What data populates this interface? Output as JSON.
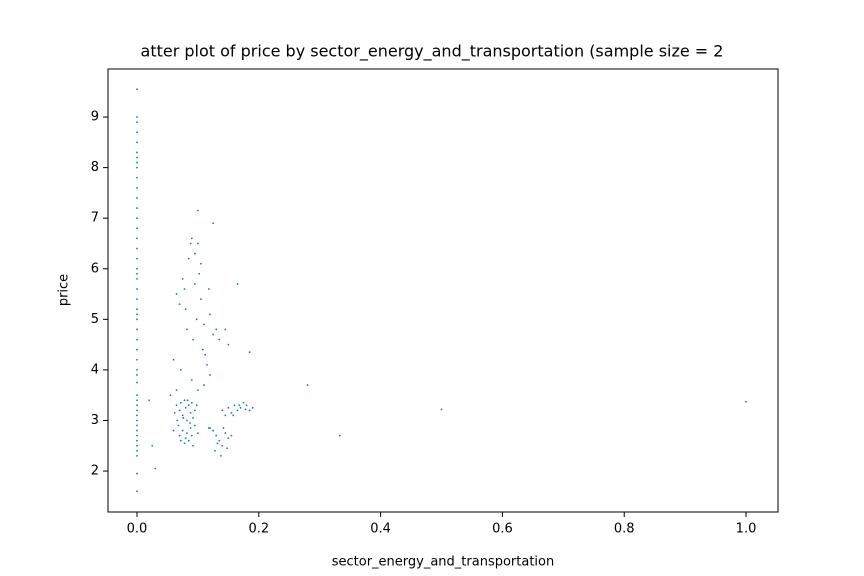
{
  "chart_data": {
    "type": "scatter",
    "title": "atter plot of price by sector_energy_and_transportation (sample size = 2",
    "xlabel": "sector_energy_and_transportation",
    "ylabel": "price",
    "color": "#1f77b4",
    "xlim": [
      -0.0476,
      1.0525
    ],
    "ylim": [
      1.19,
      9.95
    ],
    "xticks": [
      {
        "value": 0,
        "label": "0.0"
      },
      0.2,
      0.4,
      0.6,
      0.8,
      {
        "value": 1,
        "label": "1.0"
      }
    ],
    "yticks": [
      2,
      3,
      4,
      5,
      6,
      7,
      8,
      9
    ],
    "x": [
      0,
      0,
      0,
      0,
      0,
      0,
      0,
      0,
      0,
      0,
      0,
      0,
      0,
      0,
      0,
      0,
      0,
      0,
      0,
      0,
      0,
      0,
      0,
      0,
      0,
      0,
      0,
      0,
      0,
      0,
      0,
      0,
      0,
      0,
      0,
      0,
      0,
      0,
      0,
      0,
      0,
      0,
      0,
      0,
      0,
      0,
      0,
      0,
      0.065,
      0.07,
      0.072,
      0.075,
      0.078,
      0.08,
      0.082,
      0.085,
      0.088,
      0.09,
      0.092,
      0.095,
      0.068,
      0.07,
      0.072,
      0.075,
      0.078,
      0.08,
      0.082,
      0.085,
      0.088,
      0.09,
      0.092,
      0.095,
      0.1,
      0.098,
      0.066,
      0.06,
      0.062,
      0.083,
      0.087,
      0.076,
      0.12,
      0.125,
      0.13,
      0.135,
      0.14,
      0.145,
      0.15,
      0.128,
      0.138,
      0.142,
      0.132,
      0.148,
      0.118,
      0.155,
      0.14,
      0.145,
      0.15,
      0.155,
      0.16,
      0.165,
      0.17,
      0.175,
      0.18,
      0.185,
      0.19,
      0.158,
      0.168,
      0.178,
      0.06,
      0.065,
      0.07,
      0.075,
      0.078,
      0.08,
      0.082,
      0.085,
      0.088,
      0.09,
      0.092,
      0.095,
      0.1,
      0.102,
      0.105,
      0.11,
      0.112,
      0.115,
      0.118,
      0.12,
      0.125,
      0.13,
      0.135,
      0.145,
      0.15,
      0.072,
      0.09,
      0.1,
      0.11,
      0.12,
      0.055,
      0.065,
      0.108,
      0.098,
      0.105,
      0.095,
      0.28,
      0.5,
      0.333,
      1.0,
      0.03,
      0.025,
      0.02,
      0.165,
      0.185,
      0.1,
      0.125
    ],
    "y": [
      1.6,
      1.95,
      2.3,
      2.4,
      2.5,
      2.6,
      2.7,
      2.8,
      2.9,
      3.0,
      3.1,
      3.2,
      3.3,
      3.4,
      3.5,
      3.75,
      3.9,
      4.0,
      4.2,
      4.4,
      4.6,
      4.8,
      5.0,
      5.1,
      5.2,
      5.4,
      5.6,
      5.8,
      5.9,
      6.0,
      6.2,
      6.4,
      6.6,
      6.8,
      7.0,
      7.2,
      7.4,
      7.6,
      7.8,
      8.0,
      8.1,
      8.2,
      8.3,
      8.5,
      8.7,
      8.9,
      9.0,
      9.55,
      3.3,
      3.2,
      3.35,
      3.1,
      3.4,
      3.25,
      3.0,
      3.3,
      3.15,
      3.35,
      3.05,
      3.2,
      2.9,
      2.7,
      2.6,
      2.8,
      2.55,
      2.65,
      2.75,
      2.6,
      2.85,
      2.7,
      2.5,
      2.9,
      2.75,
      3.3,
      3.0,
      2.8,
      3.15,
      3.4,
      2.95,
      3.05,
      2.85,
      2.8,
      2.7,
      2.6,
      2.5,
      2.75,
      2.65,
      2.4,
      2.3,
      2.85,
      2.55,
      2.45,
      2.85,
      2.7,
      3.2,
      3.1,
      3.25,
      3.15,
      3.3,
      3.2,
      3.25,
      3.35,
      3.3,
      3.2,
      3.25,
      3.1,
      3.3,
      3.22,
      4.2,
      5.5,
      5.3,
      5.8,
      5.6,
      5.2,
      4.8,
      6.2,
      6.5,
      6.6,
      4.6,
      6.3,
      6.5,
      5.9,
      5.4,
      4.9,
      4.3,
      4.1,
      5.6,
      5.1,
      4.7,
      4.8,
      4.6,
      4.8,
      4.5,
      4.0,
      3.8,
      3.6,
      3.7,
      3.9,
      3.5,
      3.6,
      4.4,
      5.0,
      6.1,
      5.7,
      3.7,
      3.22,
      2.7,
      3.37,
      2.05,
      2.5,
      3.4,
      5.7,
      4.35,
      7.15,
      6.9
    ]
  }
}
